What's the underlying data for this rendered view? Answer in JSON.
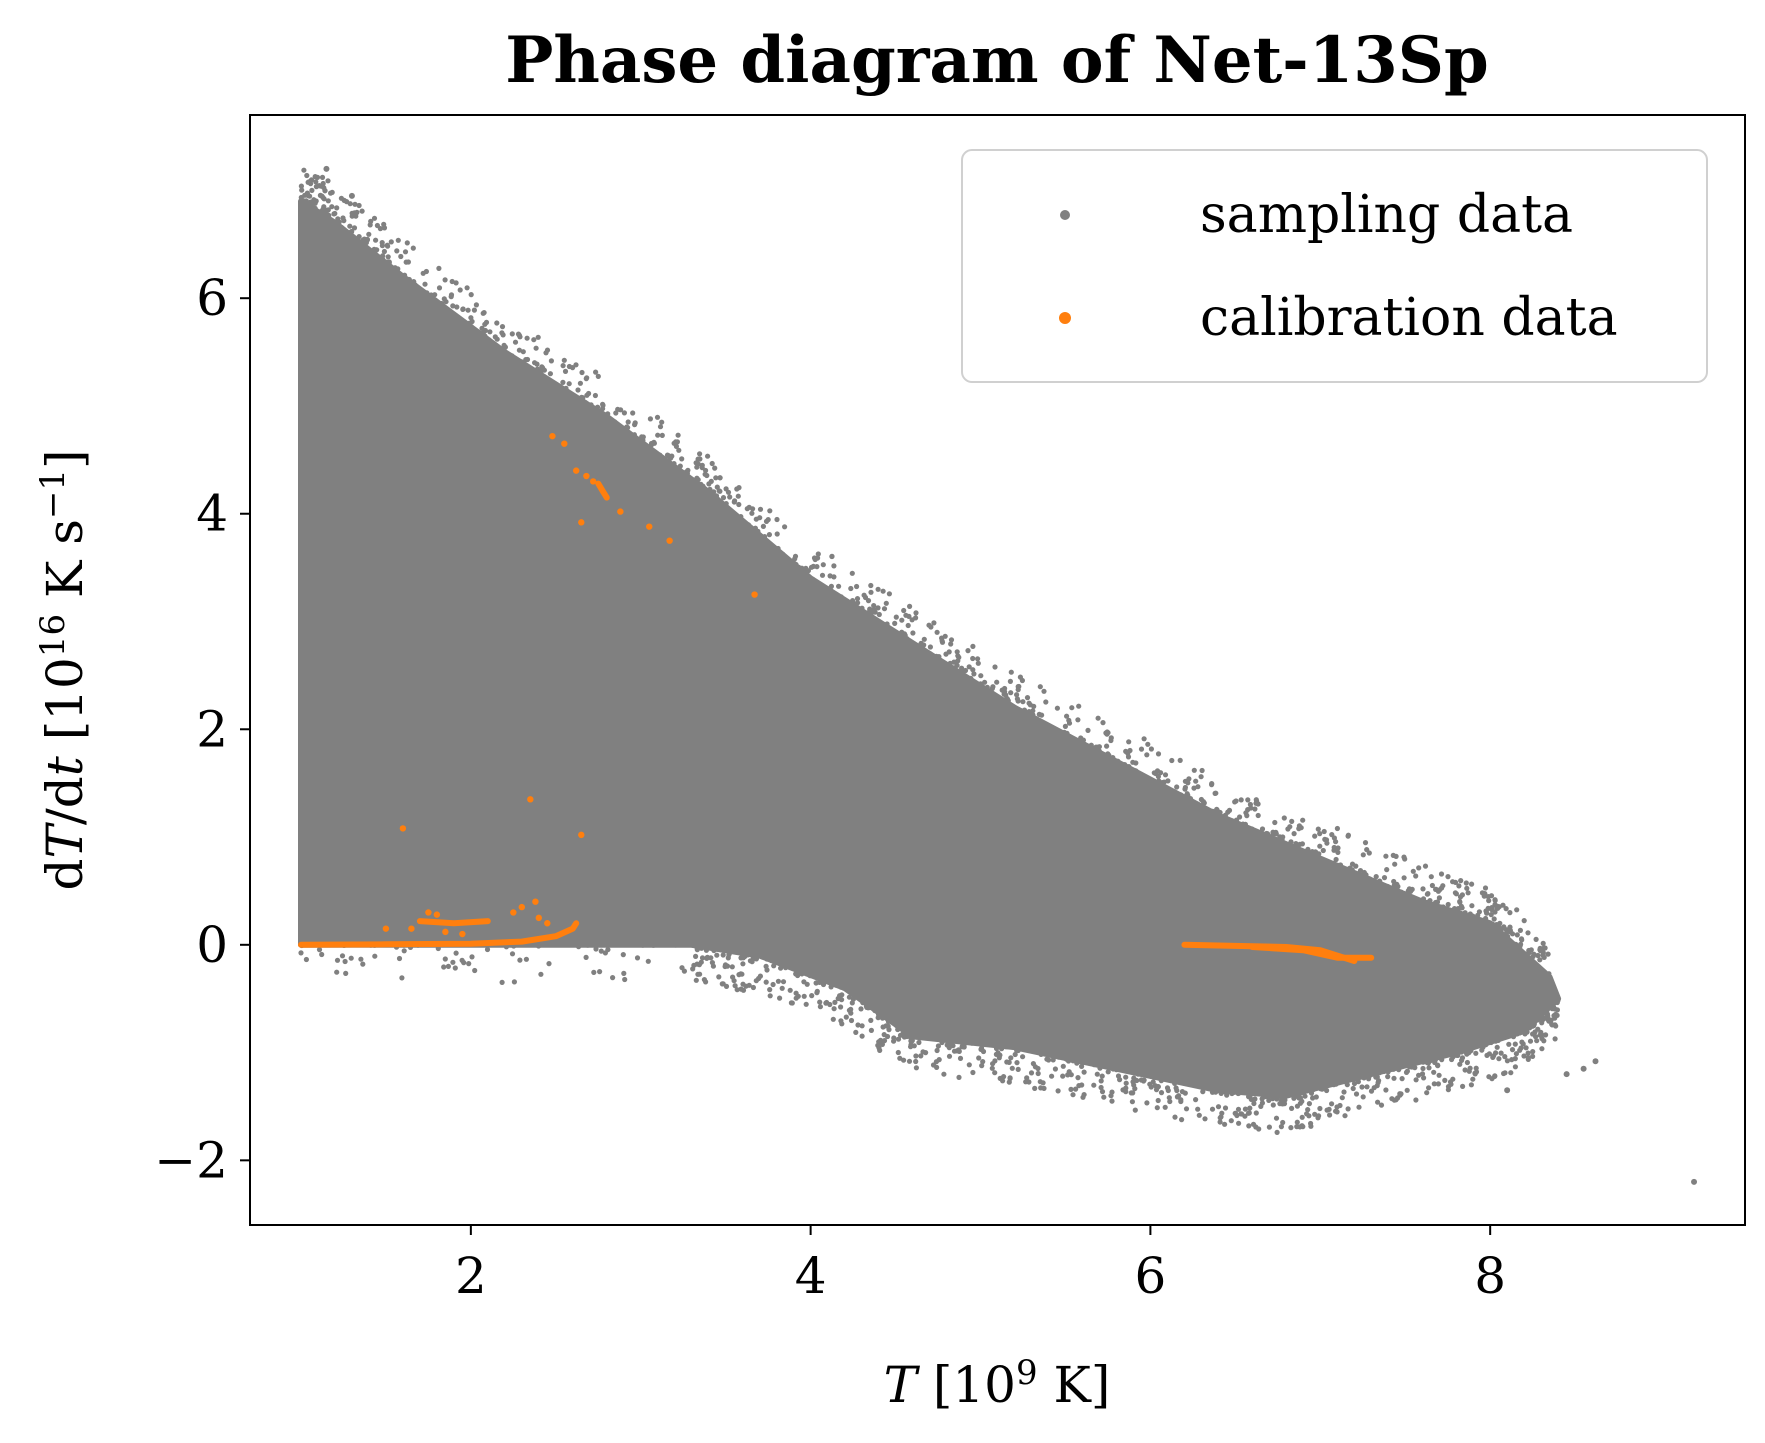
{
  "chart_data": {
    "type": "scatter",
    "title": "Phase diagram of Net-13Sp",
    "xlabel": "T [10^9 K]",
    "ylabel": "dT/dt [10^16 K s^-1]",
    "xlim": [
      0.7,
      9.5
    ],
    "ylim": [
      -2.6,
      7.7
    ],
    "xticks": [
      2,
      4,
      6,
      8
    ],
    "yticks": [
      -2,
      0,
      2,
      4,
      6
    ],
    "xtick_labels": [
      "2",
      "4",
      "6",
      "8"
    ],
    "ytick_labels": [
      "−2",
      "0",
      "2",
      "4",
      "6"
    ],
    "grid": false,
    "legend_position": "top-right",
    "series": [
      {
        "name": "sampling data",
        "color": "#808080",
        "envelope_upper": [
          [
            1.0,
            6.9
          ],
          [
            1.2,
            6.7
          ],
          [
            1.6,
            6.2
          ],
          [
            2.2,
            5.5
          ],
          [
            2.8,
            4.9
          ],
          [
            3.4,
            4.2
          ],
          [
            4.0,
            3.4
          ],
          [
            4.6,
            2.8
          ],
          [
            5.2,
            2.2
          ],
          [
            5.8,
            1.7
          ],
          [
            6.4,
            1.2
          ],
          [
            7.0,
            0.8
          ],
          [
            7.6,
            0.4
          ],
          [
            8.0,
            0.2
          ],
          [
            8.35,
            -0.3
          ]
        ],
        "envelope_lower": [
          [
            1.0,
            0.0
          ],
          [
            3.3,
            0.0
          ],
          [
            3.7,
            -0.1
          ],
          [
            4.2,
            -0.4
          ],
          [
            4.6,
            -0.85
          ],
          [
            5.2,
            -0.95
          ],
          [
            5.8,
            -1.15
          ],
          [
            6.4,
            -1.35
          ],
          [
            6.8,
            -1.4
          ],
          [
            7.3,
            -1.2
          ],
          [
            7.8,
            -1.0
          ],
          [
            8.2,
            -0.8
          ],
          [
            8.4,
            -0.5
          ]
        ],
        "lower_band": [
          [
            1.0,
            0.0
          ],
          [
            1.0,
            0.8
          ],
          [
            2.6,
            0.8
          ],
          [
            2.6,
            0.0
          ]
        ],
        "outliers": [
          [
            9.2,
            -2.2
          ],
          [
            8.62,
            -1.08
          ],
          [
            8.55,
            -1.15
          ],
          [
            8.45,
            -1.2
          ],
          [
            8.1,
            -1.35
          ],
          [
            1.15,
            7.2
          ],
          [
            1.3,
            6.95
          ],
          [
            1.25,
            2.1
          ],
          [
            1.15,
            4.6
          ],
          [
            1.3,
            4.4
          ],
          [
            1.45,
            4.9
          ],
          [
            1.55,
            3.0
          ],
          [
            1.35,
            3.2
          ],
          [
            1.2,
            2.8
          ],
          [
            1.1,
            1.5
          ],
          [
            1.4,
            1.2
          ]
        ]
      },
      {
        "name": "calibration data",
        "color": "#ff7f0e",
        "segments": [
          [
            [
              1.0,
              0.0
            ],
            [
              1.5,
              0.005
            ],
            [
              2.0,
              0.01
            ],
            [
              2.3,
              0.03
            ],
            [
              2.5,
              0.08
            ],
            [
              2.6,
              0.15
            ],
            [
              2.62,
              0.2
            ]
          ],
          [
            [
              6.2,
              0.0
            ],
            [
              6.5,
              -0.01
            ],
            [
              6.8,
              -0.02
            ],
            [
              7.0,
              -0.05
            ],
            [
              7.2,
              -0.15
            ]
          ],
          [
            [
              6.6,
              -0.02
            ],
            [
              6.9,
              -0.05
            ],
            [
              7.1,
              -0.12
            ],
            [
              7.3,
              -0.12
            ]
          ],
          [
            [
              1.7,
              0.22
            ],
            [
              1.9,
              0.2
            ],
            [
              2.1,
              0.22
            ]
          ],
          [
            [
              2.75,
              4.28
            ],
            [
              2.78,
              4.2
            ],
            [
              2.8,
              4.15
            ]
          ]
        ],
        "points": [
          [
            2.48,
            4.72
          ],
          [
            2.55,
            4.65
          ],
          [
            2.62,
            4.4
          ],
          [
            2.68,
            4.35
          ],
          [
            2.72,
            4.3
          ],
          [
            2.88,
            4.02
          ],
          [
            3.05,
            3.88
          ],
          [
            3.17,
            3.75
          ],
          [
            3.67,
            3.25
          ],
          [
            2.65,
            3.92
          ],
          [
            2.35,
            1.35
          ],
          [
            1.6,
            1.08
          ],
          [
            2.65,
            1.02
          ],
          [
            1.5,
            0.15
          ],
          [
            1.65,
            0.15
          ],
          [
            1.75,
            0.3
          ],
          [
            1.8,
            0.28
          ],
          [
            2.25,
            0.3
          ],
          [
            2.3,
            0.35
          ],
          [
            2.38,
            0.4
          ],
          [
            2.4,
            0.25
          ],
          [
            2.45,
            0.2
          ],
          [
            1.85,
            0.12
          ],
          [
            1.95,
            0.1
          ]
        ]
      }
    ]
  }
}
